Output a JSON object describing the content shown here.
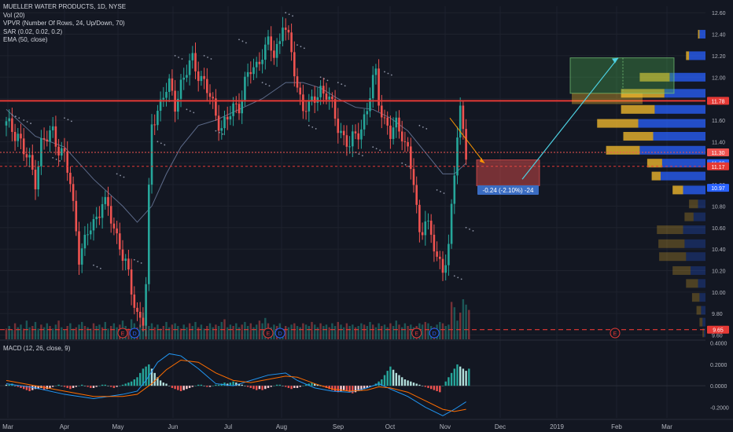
{
  "legend": {
    "symbol": "MUELLER WATER PRODUCTS, 1D, NYSE",
    "vol": "Vol (20)",
    "vpvr": "VPVR (Number Of Rows, 24, Up/Down, 70)",
    "sar": "SAR (0.02, 0.02, 0.2)",
    "ema": "EMA (50, close)"
  },
  "macd_label": "MACD (12, 26, close, 9)",
  "colors": {
    "background": "#131722",
    "up": "#26a69a",
    "down": "#ef5350",
    "resistance": "#e53935",
    "accent": "#2962ff",
    "projection": "#4dd0e1"
  },
  "chart_data": {
    "type": "candlestick",
    "y_ticks": [
      "12.60",
      "12.40",
      "12.20",
      "12.00",
      "11.80",
      "11.60",
      "11.40",
      "11.20",
      "11.00",
      "10.80",
      "10.60",
      "10.40",
      "10.20",
      "10.00",
      "9.80",
      "9.60"
    ],
    "ylim": [
      9.56,
      12.66
    ],
    "x_ticks": [
      "Mar",
      "Apr",
      "May",
      "Jun",
      "Jul",
      "Aug",
      "Sep",
      "Oct",
      "Nov",
      "Dec",
      "2019",
      "Feb",
      "Mar"
    ],
    "price_labels": [
      {
        "text": "11.78",
        "value": 11.78,
        "color": "#e53935"
      },
      {
        "text": "11.30",
        "value": 11.3,
        "color": "#ef5350"
      },
      {
        "text": "11.20",
        "value": 11.2,
        "color": "#2962ff"
      },
      {
        "text": "11.17",
        "value": 11.17,
        "color": "#e53935"
      },
      {
        "text": "10.97",
        "value": 10.97,
        "color": "#2962ff"
      },
      {
        "text": "9.65",
        "value": 9.65,
        "color": "#e53935"
      }
    ],
    "measure_label": "-0.24 (-2.10%) -24",
    "earnings_marker": "E",
    "dividend_marker": "D",
    "macd_ticks": [
      "0.4000",
      "0.2000",
      "0.0000",
      "-0.2000"
    ],
    "macd_ylim": [
      -0.3,
      0.42
    ],
    "price_path": [
      [
        0,
        11.55
      ],
      [
        4,
        11.48
      ],
      [
        6,
        11.3
      ],
      [
        8,
        11.2
      ],
      [
        10,
        11.05
      ],
      [
        12,
        11.38
      ],
      [
        14,
        11.42
      ],
      [
        16,
        11.5
      ],
      [
        18,
        11.35
      ],
      [
        20,
        11.25
      ],
      [
        22,
        11.0
      ],
      [
        24,
        10.6
      ],
      [
        25,
        10.35
      ],
      [
        27,
        10.45
      ],
      [
        29,
        10.6
      ],
      [
        31,
        10.7
      ],
      [
        33,
        10.85
      ],
      [
        35,
        10.75
      ],
      [
        37,
        10.6
      ],
      [
        39,
        10.45
      ],
      [
        41,
        10.25
      ],
      [
        43,
        10.0
      ],
      [
        45,
        9.8
      ],
      [
        47,
        9.75
      ],
      [
        48,
        10.05
      ],
      [
        49,
        10.9
      ],
      [
        50,
        11.55
      ],
      [
        52,
        11.7
      ],
      [
        54,
        11.85
      ],
      [
        56,
        11.9
      ],
      [
        58,
        11.75
      ],
      [
        60,
        11.95
      ],
      [
        62,
        12.05
      ],
      [
        64,
        12.15
      ],
      [
        66,
        12.05
      ],
      [
        68,
        11.95
      ],
      [
        70,
        11.8
      ],
      [
        72,
        11.65
      ],
      [
        74,
        11.55
      ],
      [
        76,
        11.6
      ],
      [
        78,
        11.7
      ],
      [
        80,
        11.75
      ],
      [
        82,
        11.95
      ],
      [
        84,
        12.05
      ],
      [
        86,
        12.1
      ],
      [
        88,
        12.25
      ],
      [
        90,
        12.3
      ],
      [
        92,
        12.2
      ],
      [
        94,
        12.35
      ],
      [
        95,
        12.55
      ],
      [
        96,
        12.45
      ],
      [
        98,
        12.2
      ],
      [
        100,
        11.9
      ],
      [
        102,
        11.75
      ],
      [
        104,
        11.7
      ],
      [
        106,
        11.8
      ],
      [
        108,
        11.9
      ],
      [
        110,
        11.85
      ],
      [
        112,
        11.7
      ],
      [
        114,
        11.55
      ],
      [
        116,
        11.45
      ],
      [
        118,
        11.35
      ],
      [
        120,
        11.45
      ],
      [
        122,
        11.55
      ],
      [
        124,
        11.7
      ],
      [
        126,
        11.95
      ],
      [
        127,
        12.02
      ],
      [
        128,
        11.8
      ],
      [
        130,
        11.6
      ],
      [
        132,
        11.45
      ],
      [
        134,
        11.55
      ],
      [
        136,
        11.5
      ],
      [
        138,
        11.3
      ],
      [
        140,
        11.0
      ],
      [
        141,
        10.75
      ],
      [
        142,
        10.55
      ],
      [
        144,
        10.7
      ],
      [
        146,
        10.5
      ],
      [
        148,
        10.3
      ],
      [
        150,
        10.25
      ],
      [
        152,
        10.4
      ],
      [
        153,
        10.75
      ],
      [
        154,
        11.1
      ],
      [
        155,
        11.45
      ],
      [
        156,
        11.7
      ],
      [
        157,
        11.55
      ],
      [
        158,
        11.32
      ]
    ],
    "sar_points": [
      [
        2,
        11.65
      ],
      [
        6,
        11.6
      ],
      [
        16,
        11.25
      ],
      [
        20,
        11.62
      ],
      [
        30,
        10.25
      ],
      [
        38,
        11.1
      ],
      [
        44,
        10.3
      ],
      [
        52,
        11.4
      ],
      [
        58,
        12.2
      ],
      [
        62,
        11.7
      ],
      [
        68,
        12.2
      ],
      [
        72,
        11.5
      ],
      [
        80,
        12.35
      ],
      [
        88,
        11.95
      ],
      [
        96,
        12.6
      ],
      [
        100,
        12.3
      ],
      [
        104,
        11.55
      ],
      [
        108,
        12.0
      ],
      [
        114,
        11.95
      ],
      [
        120,
        11.3
      ],
      [
        126,
        11.35
      ],
      [
        130,
        12.05
      ],
      [
        136,
        11.2
      ],
      [
        142,
        11.55
      ],
      [
        148,
        10.95
      ],
      [
        154,
        10.15
      ],
      [
        158,
        10.6
      ]
    ],
    "ema_path": [
      [
        0,
        11.7
      ],
      [
        10,
        11.45
      ],
      [
        20,
        11.35
      ],
      [
        30,
        11.05
      ],
      [
        40,
        10.8
      ],
      [
        45,
        10.65
      ],
      [
        50,
        10.8
      ],
      [
        55,
        11.1
      ],
      [
        60,
        11.35
      ],
      [
        66,
        11.55
      ],
      [
        72,
        11.6
      ],
      [
        80,
        11.7
      ],
      [
        88,
        11.8
      ],
      [
        96,
        11.95
      ],
      [
        102,
        11.95
      ],
      [
        108,
        11.9
      ],
      [
        114,
        11.8
      ],
      [
        120,
        11.72
      ],
      [
        126,
        11.7
      ],
      [
        132,
        11.62
      ],
      [
        138,
        11.5
      ],
      [
        144,
        11.3
      ],
      [
        150,
        11.1
      ],
      [
        154,
        11.1
      ],
      [
        158,
        11.2
      ]
    ],
    "volume_heights": [
      8,
      10,
      7,
      12,
      9,
      11,
      8,
      14,
      9,
      10,
      13,
      8,
      11,
      9,
      12,
      10,
      8,
      11,
      14,
      9,
      7,
      10,
      12,
      8,
      9,
      11,
      13,
      10,
      9,
      8,
      12,
      10,
      11,
      9,
      13,
      8,
      10,
      12,
      9,
      11,
      14,
      10,
      8,
      15,
      12,
      9,
      11,
      20,
      16,
      10,
      12,
      9,
      11,
      8,
      10,
      13,
      9,
      11,
      12,
      10,
      8,
      11,
      9,
      12,
      10,
      13,
      9,
      11,
      8,
      10,
      12,
      9,
      11,
      10,
      13,
      15,
      9,
      11,
      10,
      12,
      9,
      11,
      13,
      10,
      12,
      9,
      11,
      14,
      12,
      16,
      12,
      9,
      11,
      10,
      12,
      8,
      10,
      9,
      11,
      12,
      10,
      9,
      12,
      11,
      10,
      13,
      11,
      9,
      12,
      10,
      11,
      9,
      12,
      10,
      13,
      11,
      9,
      12,
      10,
      11,
      9,
      10,
      12,
      11,
      10,
      13,
      11,
      9,
      12,
      10,
      11,
      9,
      12,
      10,
      14,
      11,
      9,
      12,
      10,
      11,
      9,
      10,
      12,
      11,
      13,
      12,
      10,
      9,
      11,
      13,
      12,
      10,
      11,
      28,
      24,
      14,
      20,
      30,
      26,
      22
    ],
    "vpvr": [
      {
        "price": 12.4,
        "up": 8,
        "down": 2
      },
      {
        "price": 12.2,
        "up": 22,
        "down": 4
      },
      {
        "price": 12.0,
        "up": 48,
        "down": 40
      },
      {
        "price": 11.85,
        "up": 55,
        "down": 58
      },
      {
        "price": 11.7,
        "up": 68,
        "down": 45
      },
      {
        "price": 11.57,
        "up": 90,
        "down": 55
      },
      {
        "price": 11.45,
        "up": 70,
        "down": 40
      },
      {
        "price": 11.32,
        "up": 88,
        "down": 45
      },
      {
        "price": 11.2,
        "up": 58,
        "down": 20
      },
      {
        "price": 11.08,
        "up": 60,
        "down": 12
      },
      {
        "price": 10.95,
        "up": 30,
        "down": 14
      },
      {
        "price": 10.82,
        "up": 10,
        "down": 12
      },
      {
        "price": 10.7,
        "up": 16,
        "down": 12
      },
      {
        "price": 10.58,
        "up": 30,
        "down": 35
      },
      {
        "price": 10.45,
        "up": 28,
        "down": 35
      },
      {
        "price": 10.33,
        "up": 26,
        "down": 36
      },
      {
        "price": 10.2,
        "up": 20,
        "down": 24
      },
      {
        "price": 10.08,
        "up": 10,
        "down": 16
      },
      {
        "price": 9.95,
        "up": 8,
        "down": 10
      },
      {
        "price": 9.83,
        "up": 6,
        "down": 6
      },
      {
        "price": 9.72,
        "up": 4,
        "down": 4
      },
      {
        "price": 9.62,
        "up": 2,
        "down": 2
      }
    ],
    "macd_line": [
      [
        0,
        0.02
      ],
      [
        10,
        -0.02
      ],
      [
        20,
        -0.08
      ],
      [
        30,
        -0.12
      ],
      [
        40,
        -0.08
      ],
      [
        45,
        -0.05
      ],
      [
        48,
        0.05
      ],
      [
        52,
        0.22
      ],
      [
        56,
        0.3
      ],
      [
        60,
        0.28
      ],
      [
        66,
        0.16
      ],
      [
        72,
        0.02
      ],
      [
        78,
        0.0
      ],
      [
        84,
        0.05
      ],
      [
        90,
        0.1
      ],
      [
        96,
        0.12
      ],
      [
        100,
        0.05
      ],
      [
        106,
        -0.02
      ],
      [
        112,
        -0.05
      ],
      [
        118,
        -0.06
      ],
      [
        124,
        -0.02
      ],
      [
        128,
        0.02
      ],
      [
        132,
        -0.03
      ],
      [
        138,
        -0.1
      ],
      [
        144,
        -0.2
      ],
      [
        150,
        -0.28
      ],
      [
        154,
        -0.22
      ],
      [
        158,
        -0.15
      ]
    ],
    "macd_signal": [
      [
        0,
        0.05
      ],
      [
        10,
        0.0
      ],
      [
        20,
        -0.05
      ],
      [
        30,
        -0.1
      ],
      [
        40,
        -0.1
      ],
      [
        45,
        -0.08
      ],
      [
        50,
        0.02
      ],
      [
        55,
        0.15
      ],
      [
        60,
        0.24
      ],
      [
        66,
        0.22
      ],
      [
        72,
        0.12
      ],
      [
        78,
        0.05
      ],
      [
        84,
        0.03
      ],
      [
        90,
        0.06
      ],
      [
        96,
        0.09
      ],
      [
        100,
        0.08
      ],
      [
        106,
        0.02
      ],
      [
        112,
        -0.03
      ],
      [
        118,
        -0.05
      ],
      [
        124,
        -0.04
      ],
      [
        128,
        -0.01
      ],
      [
        132,
        -0.02
      ],
      [
        138,
        -0.06
      ],
      [
        144,
        -0.14
      ],
      [
        150,
        -0.22
      ],
      [
        154,
        -0.24
      ],
      [
        158,
        -0.22
      ]
    ],
    "macd_hist": [
      0.01,
      0.01,
      0.02,
      0.0,
      -0.01,
      -0.02,
      -0.03,
      -0.04,
      -0.05,
      -0.04,
      -0.03,
      -0.03,
      -0.02,
      -0.04,
      -0.03,
      -0.02,
      -0.01,
      0.0,
      0.01,
      0.0,
      -0.01,
      -0.02,
      -0.03,
      -0.02,
      -0.01,
      0.0,
      0.01,
      0.0,
      -0.01,
      -0.02,
      -0.02,
      -0.01,
      0.0,
      0.01,
      0.01,
      0.0,
      -0.01,
      -0.02,
      -0.01,
      0.0,
      0.01,
      0.02,
      0.03,
      0.04,
      0.06,
      0.08,
      0.12,
      0.16,
      0.18,
      0.2,
      0.16,
      0.12,
      0.08,
      0.05,
      0.03,
      0.02,
      0.0,
      -0.02,
      -0.03,
      -0.04,
      -0.05,
      -0.04,
      -0.03,
      -0.02,
      -0.01,
      0.0,
      0.01,
      0.01,
      0.0,
      -0.01,
      -0.01,
      0.0,
      0.01,
      0.01,
      0.02,
      0.03,
      0.02,
      0.03,
      0.04,
      0.03,
      0.02,
      0.01,
      0.0,
      -0.01,
      -0.02,
      -0.03,
      -0.04,
      -0.03,
      -0.04,
      -0.03,
      -0.02,
      -0.01,
      0.0,
      0.01,
      0.01,
      0.0,
      -0.01,
      -0.02,
      -0.03,
      -0.02,
      -0.02,
      -0.01,
      0.0,
      0.01,
      0.02,
      0.03,
      0.02,
      0.01,
      0.0,
      -0.01,
      -0.02,
      -0.03,
      -0.04,
      -0.05,
      -0.06,
      -0.05,
      -0.04,
      -0.05,
      -0.06,
      -0.07,
      -0.06,
      -0.05,
      -0.04,
      -0.03,
      -0.02,
      -0.01,
      0.0,
      0.02,
      0.04,
      0.06,
      0.1,
      0.14,
      0.18,
      0.15,
      0.12,
      0.1,
      0.08,
      0.06,
      0.05,
      0.04,
      0.03,
      0.02,
      0.01,
      0.0,
      -0.01,
      -0.02,
      -0.03,
      -0.04,
      -0.05,
      -0.06,
      0.0,
      0.04,
      0.08,
      0.12,
      0.16,
      0.2,
      0.18,
      0.16,
      0.14,
      0.16
    ],
    "earnings_positions": [
      40,
      90,
      141,
      192
    ],
    "dividend_positions": [
      43,
      93,
      146
    ]
  }
}
